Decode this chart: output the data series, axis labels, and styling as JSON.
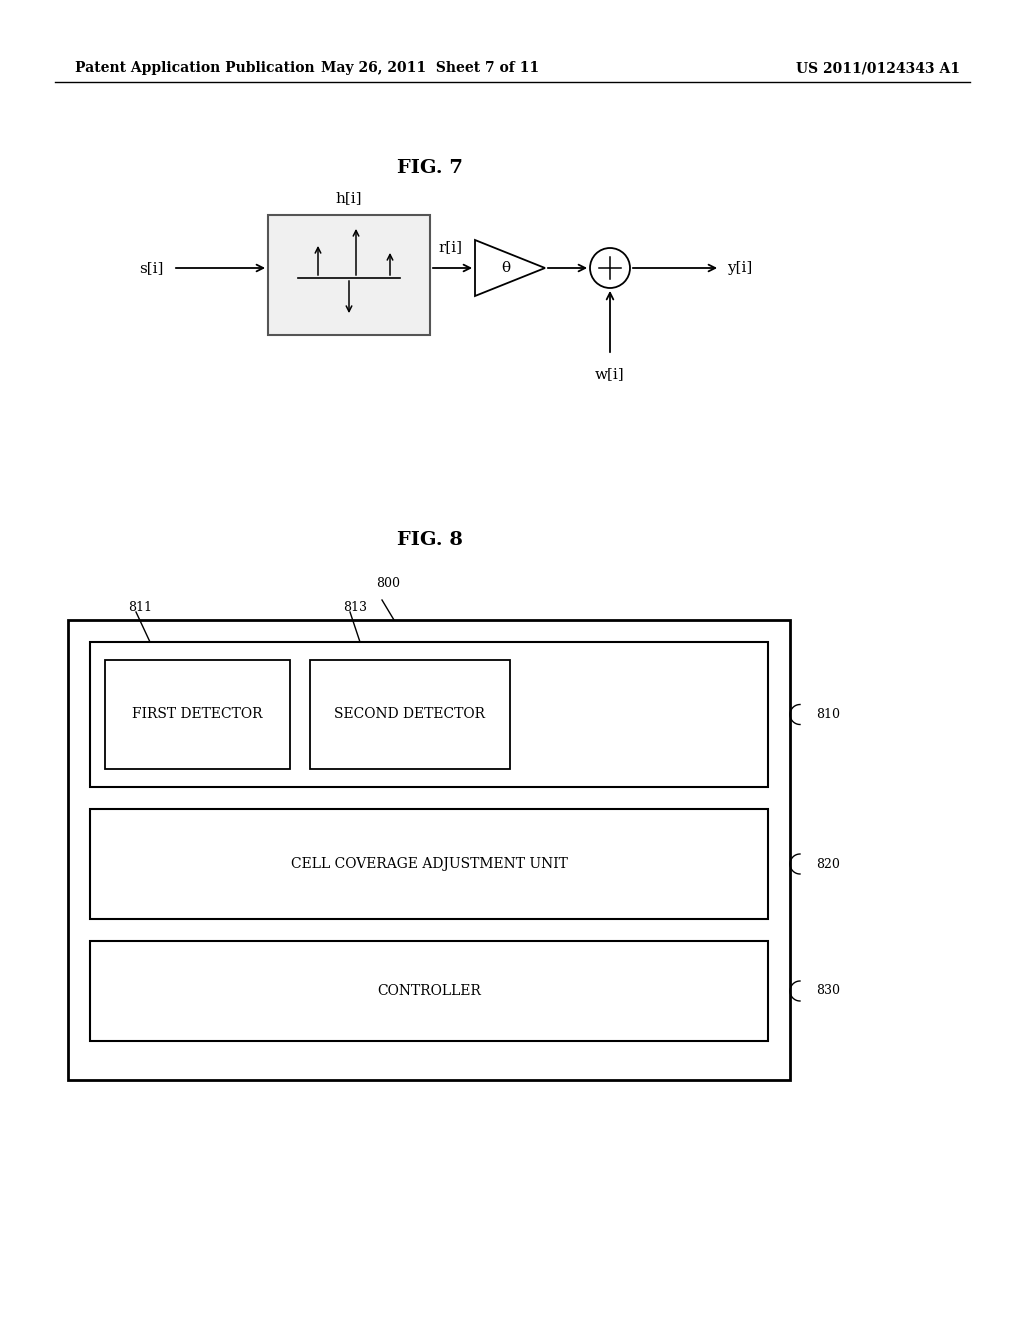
{
  "bg_color": "#ffffff",
  "text_color": "#000000",
  "header_left": "Patent Application Publication",
  "header_mid": "May 26, 2011  Sheet 7 of 11",
  "header_right": "US 2011/0124343 A1",
  "fig7_title": "FIG. 7",
  "fig8_title": "FIG. 8",
  "fig7": {
    "si_label": "s[i]",
    "hi_label": "h[i]",
    "ri_label": "r[i]",
    "wi_label": "w[i]",
    "yi_label": "y[i]",
    "theta_label": "θ"
  },
  "fig8": {
    "label_800": "800",
    "label_810": "810",
    "label_820": "820",
    "label_830": "830",
    "label_811": "811",
    "label_813": "813",
    "first_det_label": "FIRST DETECTOR",
    "second_det_label": "SECOND DETECTOR",
    "cell_cov_label": "CELL COVERAGE ADJUSTMENT UNIT",
    "controller_label": "CONTROLLER"
  }
}
